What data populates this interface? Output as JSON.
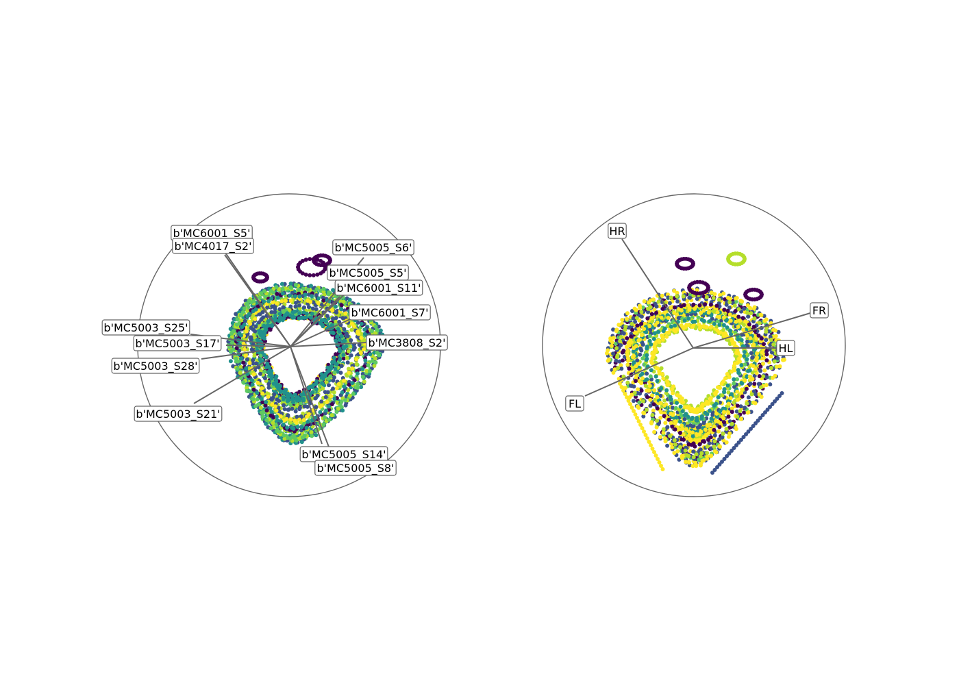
{
  "chart_data": [
    {
      "type": "scatter",
      "projection": "radial (RadViz)",
      "colormap": "viridis",
      "anchors": [
        {
          "label": "b'MC6001_S5'",
          "angle_deg": 116
        },
        {
          "label": "b'MC4017_S2'",
          "angle_deg": 114
        },
        {
          "label": "b'MC5005_S6'",
          "angle_deg": 54
        },
        {
          "label": "b'MC5005_S5'",
          "angle_deg": 40
        },
        {
          "label": "b'MC6001_S11'",
          "angle_deg": 31
        },
        {
          "label": "b'MC6001_S7'",
          "angle_deg": 22
        },
        {
          "label": "b'MC3808_S2'",
          "angle_deg": 2
        },
        {
          "label": "b'MC5003_S25'",
          "angle_deg": 171
        },
        {
          "label": "b'MC5003_S17'",
          "angle_deg": 176
        },
        {
          "label": "b'MC5003_S28'",
          "angle_deg": 188
        },
        {
          "label": "b'MC5003_S21'",
          "angle_deg": 218
        },
        {
          "label": "b'MC5005_S14'",
          "angle_deg": 296
        },
        {
          "label": "b'MC5005_S8'",
          "angle_deg": 298
        }
      ]
    },
    {
      "type": "scatter",
      "projection": "radial (RadViz)",
      "colormap": "viridis",
      "anchors": [
        {
          "label": "HR",
          "angle_deg": 124
        },
        {
          "label": "FR",
          "angle_deg": 20
        },
        {
          "label": "HL",
          "angle_deg": 0
        },
        {
          "label": "FL",
          "angle_deg": 204
        }
      ]
    }
  ],
  "colors": {
    "viridis": [
      "#440154",
      "#3b528b",
      "#21918c",
      "#5ec962",
      "#b5de2b",
      "#fde725"
    ],
    "frame": "#666666"
  }
}
